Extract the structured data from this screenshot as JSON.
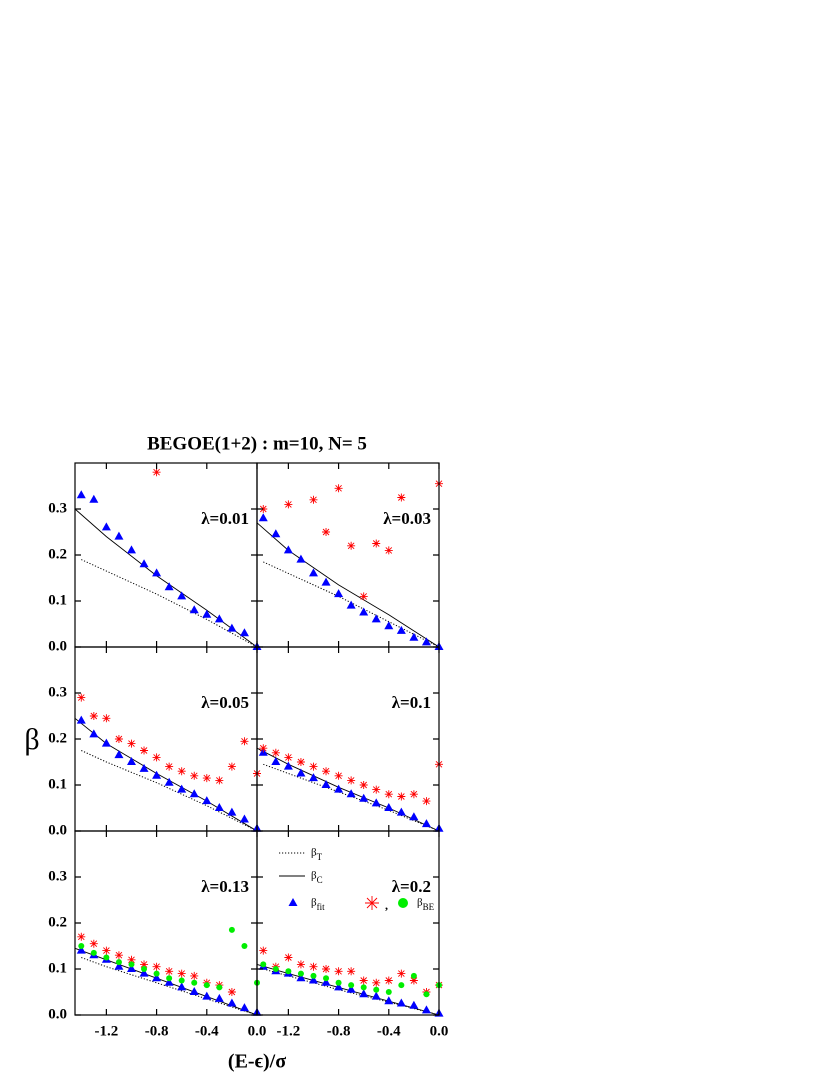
{
  "title": "BEGOE(1+2) : m=10, N= 5",
  "x_label": "(E-ϵ)/σ",
  "y_label": "β",
  "axes": {
    "xlim": [
      -1.45,
      0
    ],
    "ylim": [
      0,
      0.4
    ],
    "xticks": [
      {
        "value": -1.2,
        "label": "-1.2"
      },
      {
        "value": -0.8,
        "label": "-0.8"
      },
      {
        "value": -0.4,
        "label": "-0.4"
      },
      {
        "value": 0,
        "label": "0.0"
      }
    ],
    "yticks": [
      {
        "value": 0,
        "label": "0.0"
      },
      {
        "value": 0.1,
        "label": "0.1"
      },
      {
        "value": 0.2,
        "label": "0.2"
      },
      {
        "value": 0.3,
        "label": "0.3"
      }
    ]
  },
  "chart_data": [
    {
      "type": "scatter",
      "annotation": "λ=0.01",
      "series": [
        {
          "style": "dotted",
          "color": "#000000",
          "x": [
            -1.4,
            -1.2,
            -0.8,
            -0.4,
            0
          ],
          "values": [
            0.19,
            0.165,
            0.115,
            0.06,
            0
          ]
        },
        {
          "style": "solid",
          "color": "#000000",
          "x": [
            -1.45,
            -1.2,
            -0.8,
            -0.4,
            0
          ],
          "values": [
            0.3,
            0.24,
            0.155,
            0.08,
            0
          ]
        },
        {
          "style": "triangle",
          "color": "#0000ff",
          "x": [
            -1.4,
            -1.3,
            -1.2,
            -1.1,
            -1.0,
            -0.9,
            -0.8,
            -0.7,
            -0.6,
            -0.5,
            -0.4,
            -0.3,
            -0.2,
            -0.1,
            0.0
          ],
          "values": [
            0.33,
            0.32,
            0.26,
            0.24,
            0.21,
            0.18,
            0.16,
            0.13,
            0.11,
            0.08,
            0.07,
            0.06,
            0.04,
            0.03,
            0.0
          ]
        },
        {
          "style": "star",
          "color": "#ff0000",
          "x": [
            -0.8
          ],
          "values": [
            0.38
          ]
        }
      ]
    },
    {
      "type": "scatter",
      "annotation": "λ=0.03",
      "series": [
        {
          "style": "dotted",
          "color": "#000000",
          "x": [
            -1.4,
            -1.2,
            -0.8,
            -0.4,
            0
          ],
          "values": [
            0.185,
            0.16,
            0.11,
            0.055,
            0
          ]
        },
        {
          "style": "solid",
          "color": "#000000",
          "x": [
            -1.45,
            -1.2,
            -0.8,
            -0.4,
            0
          ],
          "values": [
            0.27,
            0.21,
            0.135,
            0.07,
            0
          ]
        },
        {
          "style": "triangle",
          "color": "#0000ff",
          "x": [
            -1.4,
            -1.3,
            -1.2,
            -1.1,
            -1.0,
            -0.9,
            -0.8,
            -0.7,
            -0.6,
            -0.5,
            -0.4,
            -0.3,
            -0.2,
            -0.1,
            0.0
          ],
          "values": [
            0.28,
            0.245,
            0.21,
            0.19,
            0.16,
            0.14,
            0.115,
            0.09,
            0.075,
            0.06,
            0.045,
            0.035,
            0.02,
            0.01,
            0.0
          ]
        },
        {
          "style": "star",
          "color": "#ff0000",
          "x": [
            -1.4,
            -1.2,
            -1.0,
            -0.9,
            -0.8,
            -0.7,
            -0.6,
            -0.5,
            -0.4,
            -0.3,
            0.0
          ],
          "values": [
            0.3,
            0.31,
            0.32,
            0.25,
            0.345,
            0.22,
            0.11,
            0.225,
            0.21,
            0.325,
            0.355
          ]
        }
      ]
    },
    {
      "type": "scatter",
      "annotation": "λ=0.05",
      "series": [
        {
          "style": "dotted",
          "color": "#000000",
          "x": [
            -1.4,
            -1.2,
            -0.8,
            -0.4,
            0
          ],
          "values": [
            0.175,
            0.15,
            0.105,
            0.055,
            0
          ]
        },
        {
          "style": "solid",
          "color": "#000000",
          "x": [
            -1.45,
            -1.2,
            -0.8,
            -0.4,
            0
          ],
          "values": [
            0.245,
            0.19,
            0.125,
            0.065,
            0
          ]
        },
        {
          "style": "triangle",
          "color": "#0000ff",
          "x": [
            -1.4,
            -1.3,
            -1.2,
            -1.1,
            -1.0,
            -0.9,
            -0.8,
            -0.7,
            -0.6,
            -0.5,
            -0.4,
            -0.3,
            -0.2,
            -0.1,
            0.0
          ],
          "values": [
            0.24,
            0.21,
            0.19,
            0.165,
            0.15,
            0.135,
            0.12,
            0.105,
            0.09,
            0.08,
            0.065,
            0.05,
            0.04,
            0.025,
            0.005
          ]
        },
        {
          "style": "star",
          "color": "#ff0000",
          "x": [
            -1.4,
            -1.3,
            -1.2,
            -1.1,
            -1.0,
            -0.9,
            -0.8,
            -0.7,
            -0.6,
            -0.5,
            -0.4,
            -0.3,
            -0.2,
            -0.1,
            0.0
          ],
          "values": [
            0.29,
            0.25,
            0.245,
            0.2,
            0.19,
            0.175,
            0.16,
            0.14,
            0.13,
            0.12,
            0.115,
            0.11,
            0.14,
            0.195,
            0.125
          ]
        }
      ]
    },
    {
      "type": "scatter",
      "annotation": "λ=0.1",
      "series": [
        {
          "style": "dotted",
          "color": "#000000",
          "x": [
            -1.4,
            -1.2,
            -0.8,
            -0.4,
            0
          ],
          "values": [
            0.145,
            0.125,
            0.085,
            0.045,
            0
          ]
        },
        {
          "style": "solid",
          "color": "#000000",
          "x": [
            -1.45,
            -1.2,
            -0.8,
            -0.4,
            0
          ],
          "values": [
            0.18,
            0.145,
            0.095,
            0.05,
            0
          ]
        },
        {
          "style": "triangle",
          "color": "#0000ff",
          "x": [
            -1.4,
            -1.3,
            -1.2,
            -1.1,
            -1.0,
            -0.9,
            -0.8,
            -0.7,
            -0.6,
            -0.5,
            -0.4,
            -0.3,
            -0.2,
            -0.1,
            0.0
          ],
          "values": [
            0.17,
            0.15,
            0.14,
            0.125,
            0.115,
            0.1,
            0.09,
            0.08,
            0.07,
            0.06,
            0.05,
            0.04,
            0.03,
            0.015,
            0.005
          ]
        },
        {
          "style": "star",
          "color": "#ff0000",
          "x": [
            -1.4,
            -1.3,
            -1.2,
            -1.1,
            -1.0,
            -0.9,
            -0.8,
            -0.7,
            -0.6,
            -0.5,
            -0.4,
            -0.3,
            -0.2,
            -0.1,
            0.0
          ],
          "values": [
            0.18,
            0.17,
            0.16,
            0.15,
            0.14,
            0.13,
            0.12,
            0.11,
            0.1,
            0.09,
            0.08,
            0.075,
            0.08,
            0.065,
            0.145
          ]
        }
      ]
    },
    {
      "type": "scatter",
      "annotation": "λ=0.13",
      "series": [
        {
          "style": "dotted",
          "color": "#000000",
          "x": [
            -1.4,
            -1.2,
            -0.8,
            -0.4,
            0
          ],
          "values": [
            0.125,
            0.105,
            0.07,
            0.035,
            0
          ]
        },
        {
          "style": "solid",
          "color": "#000000",
          "x": [
            -1.45,
            -1.2,
            -0.8,
            -0.4,
            0
          ],
          "values": [
            0.145,
            0.12,
            0.08,
            0.04,
            0
          ]
        },
        {
          "style": "triangle",
          "color": "#0000ff",
          "x": [
            -1.4,
            -1.3,
            -1.2,
            -1.1,
            -1.0,
            -0.9,
            -0.8,
            -0.7,
            -0.6,
            -0.5,
            -0.4,
            -0.3,
            -0.2,
            -0.1,
            0.0
          ],
          "values": [
            0.14,
            0.13,
            0.12,
            0.105,
            0.1,
            0.09,
            0.08,
            0.07,
            0.06,
            0.05,
            0.04,
            0.035,
            0.025,
            0.015,
            0.005
          ]
        },
        {
          "style": "star",
          "color": "#ff0000",
          "x": [
            -1.4,
            -1.3,
            -1.2,
            -1.1,
            -1.0,
            -0.9,
            -0.8,
            -0.7,
            -0.6,
            -0.5,
            -0.4,
            -0.3,
            -0.2
          ],
          "values": [
            0.17,
            0.155,
            0.14,
            0.13,
            0.12,
            0.11,
            0.105,
            0.095,
            0.09,
            0.085,
            0.07,
            0.065,
            0.05
          ]
        },
        {
          "style": "circle",
          "color": "#00ee00",
          "x": [
            -1.4,
            -1.3,
            -1.2,
            -1.1,
            -1.0,
            -0.9,
            -0.8,
            -0.7,
            -0.6,
            -0.5,
            -0.4,
            -0.3,
            -0.2,
            -0.1,
            0.0
          ],
          "values": [
            0.15,
            0.135,
            0.125,
            0.115,
            0.11,
            0.1,
            0.09,
            0.08,
            0.075,
            0.07,
            0.065,
            0.06,
            0.185,
            0.15,
            0.07
          ]
        }
      ]
    },
    {
      "type": "scatter",
      "annotation": "λ=0.2",
      "legend": {
        "corner": "upper left",
        "joiner": ","
      },
      "series": [
        {
          "name": "βT",
          "style": "dotted",
          "color": "#000000",
          "x": [
            -1.4,
            -1.2,
            -0.8,
            -0.4,
            0
          ],
          "values": [
            0.1,
            0.085,
            0.055,
            0.028,
            0
          ]
        },
        {
          "name": "βC",
          "style": "solid",
          "color": "#000000",
          "x": [
            -1.45,
            -1.2,
            -0.8,
            -0.4,
            0
          ],
          "values": [
            0.11,
            0.09,
            0.06,
            0.03,
            0
          ]
        },
        {
          "name": "βfit",
          "style": "triangle",
          "color": "#0000ff",
          "x": [
            -1.4,
            -1.3,
            -1.2,
            -1.1,
            -1.0,
            -0.9,
            -0.8,
            -0.7,
            -0.6,
            -0.5,
            -0.4,
            -0.3,
            -0.2,
            -0.1,
            0.0
          ],
          "values": [
            0.105,
            0.095,
            0.09,
            0.08,
            0.075,
            0.07,
            0.06,
            0.055,
            0.045,
            0.04,
            0.03,
            0.025,
            0.02,
            0.01,
            0.003
          ]
        },
        {
          "style": "star",
          "color": "#ff0000",
          "x": [
            -1.4,
            -1.3,
            -1.2,
            -1.1,
            -1.0,
            -0.9,
            -0.8,
            -0.7,
            -0.6,
            -0.5,
            -0.4,
            -0.3,
            -0.2,
            -0.1,
            0.0
          ],
          "values": [
            0.14,
            0.105,
            0.125,
            0.11,
            0.105,
            0.1,
            0.095,
            0.095,
            0.075,
            0.07,
            0.075,
            0.09,
            0.075,
            0.05,
            0.065
          ]
        },
        {
          "name": "βBE",
          "style": "circle",
          "color": "#00ee00",
          "x": [
            -1.4,
            -1.3,
            -1.2,
            -1.1,
            -1.0,
            -0.9,
            -0.8,
            -0.7,
            -0.6,
            -0.5,
            -0.4,
            -0.3,
            -0.2,
            -0.1,
            0.0
          ],
          "values": [
            0.11,
            0.1,
            0.095,
            0.09,
            0.085,
            0.08,
            0.07,
            0.065,
            0.06,
            0.055,
            0.05,
            0.065,
            0.085,
            0.045,
            0.065
          ]
        }
      ]
    }
  ]
}
